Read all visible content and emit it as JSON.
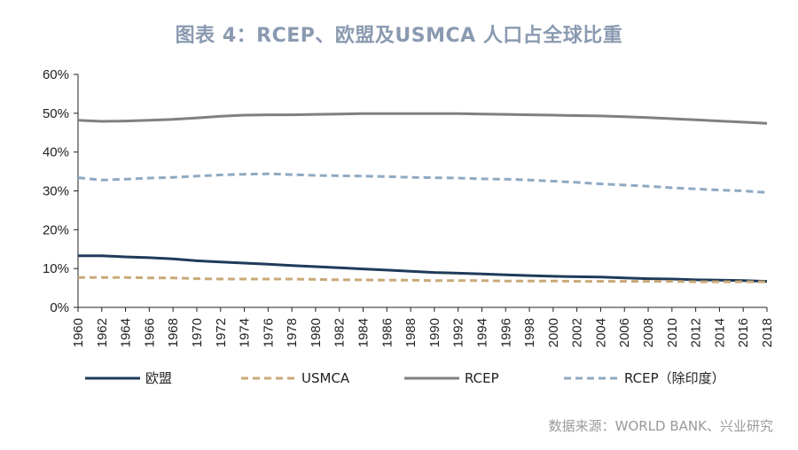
{
  "chart_data": {
    "type": "line",
    "title": "图表 4：RCEP、欧盟及USMCA 人口占全球比重",
    "source": "数据来源：WORLD BANK、兴业研究",
    "ylim": [
      0,
      60
    ],
    "yticks": [
      0,
      10,
      20,
      30,
      40,
      50,
      60
    ],
    "ytick_labels": [
      "0%",
      "10%",
      "20%",
      "30%",
      "40%",
      "50%",
      "60%"
    ],
    "xlim": [
      1960,
      2018
    ],
    "xticks": [
      1960,
      1962,
      1964,
      1966,
      1968,
      1970,
      1972,
      1974,
      1976,
      1978,
      1980,
      1982,
      1984,
      1986,
      1988,
      1990,
      1992,
      1994,
      1996,
      1998,
      2000,
      2002,
      2004,
      2006,
      2008,
      2010,
      2012,
      2014,
      2016,
      2018
    ],
    "xtick_labels": [
      "1960",
      "1962",
      "1964",
      "1966",
      "1968",
      "1970",
      "1972",
      "1974",
      "1976",
      "1978",
      "1980",
      "1982",
      "1984",
      "1986",
      "1988",
      "1990",
      "1992",
      "1994",
      "1996",
      "1998",
      "2000",
      "2002",
      "2004",
      "2006",
      "2008",
      "2010",
      "2012",
      "2014",
      "2016",
      "2018"
    ],
    "legend_position": "bottom",
    "series": [
      {
        "name": "欧盟",
        "color": "#1f3b5a",
        "dash": "solid",
        "points": [
          [
            1960,
            13.3
          ],
          [
            1962,
            13.3
          ],
          [
            1964,
            13.0
          ],
          [
            1966,
            12.8
          ],
          [
            1968,
            12.5
          ],
          [
            1970,
            12.0
          ],
          [
            1972,
            11.7
          ],
          [
            1974,
            11.4
          ],
          [
            1976,
            11.1
          ],
          [
            1978,
            10.8
          ],
          [
            1980,
            10.5
          ],
          [
            1982,
            10.2
          ],
          [
            1984,
            9.9
          ],
          [
            1986,
            9.6
          ],
          [
            1988,
            9.3
          ],
          [
            1990,
            9.0
          ],
          [
            1992,
            8.8
          ],
          [
            1994,
            8.6
          ],
          [
            1996,
            8.4
          ],
          [
            1998,
            8.2
          ],
          [
            2000,
            8.0
          ],
          [
            2002,
            7.9
          ],
          [
            2004,
            7.8
          ],
          [
            2006,
            7.6
          ],
          [
            2008,
            7.4
          ],
          [
            2010,
            7.3
          ],
          [
            2012,
            7.1
          ],
          [
            2014,
            7.0
          ],
          [
            2016,
            6.9
          ],
          [
            2018,
            6.7
          ]
        ]
      },
      {
        "name": "USMCA",
        "color": "#c9a978",
        "dash": "dashed",
        "points": [
          [
            1960,
            7.7
          ],
          [
            1962,
            7.7
          ],
          [
            1964,
            7.7
          ],
          [
            1966,
            7.6
          ],
          [
            1968,
            7.6
          ],
          [
            1970,
            7.4
          ],
          [
            1972,
            7.3
          ],
          [
            1974,
            7.3
          ],
          [
            1976,
            7.3
          ],
          [
            1978,
            7.3
          ],
          [
            1980,
            7.2
          ],
          [
            1982,
            7.1
          ],
          [
            1984,
            7.1
          ],
          [
            1986,
            7.0
          ],
          [
            1988,
            7.0
          ],
          [
            1990,
            6.9
          ],
          [
            1992,
            6.9
          ],
          [
            1994,
            6.9
          ],
          [
            1996,
            6.8
          ],
          [
            1998,
            6.8
          ],
          [
            2000,
            6.8
          ],
          [
            2002,
            6.7
          ],
          [
            2004,
            6.7
          ],
          [
            2006,
            6.7
          ],
          [
            2008,
            6.7
          ],
          [
            2010,
            6.7
          ],
          [
            2012,
            6.6
          ],
          [
            2014,
            6.6
          ],
          [
            2016,
            6.6
          ],
          [
            2018,
            6.6
          ]
        ]
      },
      {
        "name": "RCEP",
        "color": "#808080",
        "dash": "solid",
        "points": [
          [
            1960,
            48.2
          ],
          [
            1962,
            47.9
          ],
          [
            1964,
            48.0
          ],
          [
            1966,
            48.2
          ],
          [
            1968,
            48.4
          ],
          [
            1970,
            48.8
          ],
          [
            1972,
            49.2
          ],
          [
            1974,
            49.5
          ],
          [
            1976,
            49.6
          ],
          [
            1978,
            49.6
          ],
          [
            1980,
            49.7
          ],
          [
            1982,
            49.8
          ],
          [
            1984,
            49.9
          ],
          [
            1986,
            49.9
          ],
          [
            1988,
            49.9
          ],
          [
            1990,
            49.9
          ],
          [
            1992,
            49.9
          ],
          [
            1994,
            49.8
          ],
          [
            1996,
            49.7
          ],
          [
            1998,
            49.6
          ],
          [
            2000,
            49.5
          ],
          [
            2002,
            49.4
          ],
          [
            2004,
            49.3
          ],
          [
            2006,
            49.1
          ],
          [
            2008,
            48.9
          ],
          [
            2010,
            48.6
          ],
          [
            2012,
            48.3
          ],
          [
            2014,
            48.0
          ],
          [
            2016,
            47.7
          ],
          [
            2018,
            47.4
          ]
        ]
      },
      {
        "name": "RCEP（除印度）",
        "color": "#8fa9c2",
        "dash": "dashed",
        "points": [
          [
            1960,
            33.4
          ],
          [
            1962,
            32.8
          ],
          [
            1964,
            33.0
          ],
          [
            1966,
            33.3
          ],
          [
            1968,
            33.5
          ],
          [
            1970,
            33.8
          ],
          [
            1972,
            34.1
          ],
          [
            1974,
            34.3
          ],
          [
            1976,
            34.4
          ],
          [
            1978,
            34.2
          ],
          [
            1980,
            34.0
          ],
          [
            1982,
            33.9
          ],
          [
            1984,
            33.8
          ],
          [
            1986,
            33.7
          ],
          [
            1988,
            33.5
          ],
          [
            1990,
            33.4
          ],
          [
            1992,
            33.3
          ],
          [
            1994,
            33.1
          ],
          [
            1996,
            33.0
          ],
          [
            1998,
            32.8
          ],
          [
            2000,
            32.5
          ],
          [
            2002,
            32.2
          ],
          [
            2004,
            31.8
          ],
          [
            2006,
            31.5
          ],
          [
            2008,
            31.2
          ],
          [
            2010,
            30.8
          ],
          [
            2012,
            30.5
          ],
          [
            2014,
            30.2
          ],
          [
            2016,
            30.0
          ],
          [
            2018,
            29.6
          ]
        ]
      }
    ]
  }
}
